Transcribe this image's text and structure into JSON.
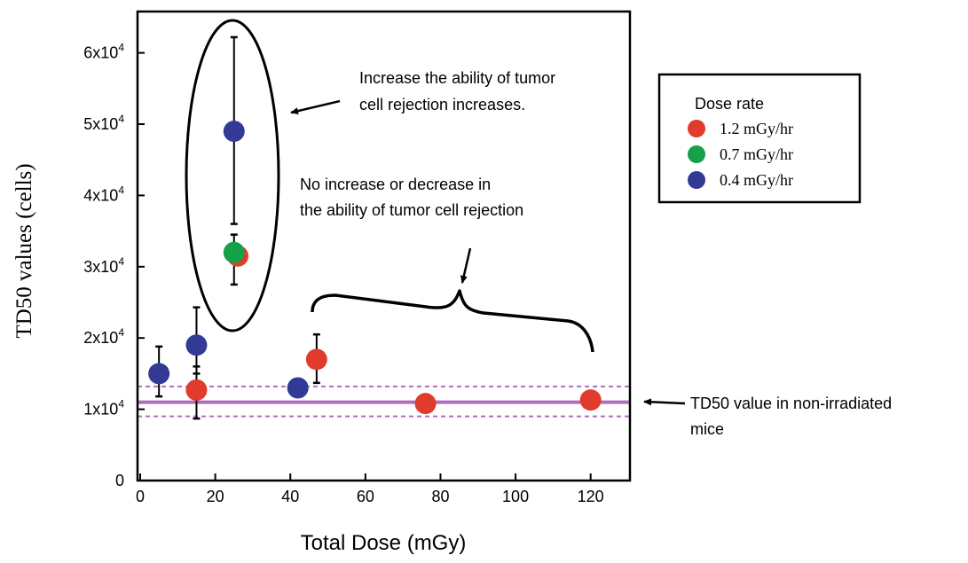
{
  "chart_data": {
    "type": "scatter",
    "xlabel": "Total Dose (mGy)",
    "ylabel": "TD50 values (cells)",
    "xlim": [
      0,
      130
    ],
    "ylim": [
      0,
      64000
    ],
    "x_ticks": [
      {
        "value": 0,
        "label": "0"
      },
      {
        "value": 20,
        "label": "20"
      },
      {
        "value": 40,
        "label": "40"
      },
      {
        "value": 60,
        "label": "60"
      },
      {
        "value": 80,
        "label": "80"
      },
      {
        "value": 100,
        "label": "100"
      },
      {
        "value": 120,
        "label": "120"
      }
    ],
    "y_ticks": [
      {
        "value": 0,
        "mantissa": "0",
        "base": "",
        "exp": ""
      },
      {
        "value": 10000,
        "mantissa": "1",
        "base": "x10",
        "exp": "4"
      },
      {
        "value": 20000,
        "mantissa": "2",
        "base": "x10",
        "exp": "4"
      },
      {
        "value": 30000,
        "mantissa": "3",
        "base": "x10",
        "exp": "4"
      },
      {
        "value": 40000,
        "mantissa": "4",
        "base": "x10",
        "exp": "4"
      },
      {
        "value": 50000,
        "mantissa": "5",
        "base": "x10",
        "exp": "4"
      },
      {
        "value": 60000,
        "mantissa": "6",
        "base": "x10",
        "exp": "4"
      }
    ],
    "legend": {
      "title": "Dose rate",
      "placement": "right",
      "entries": [
        {
          "label": "1.2 mGy/hr",
          "color": "#e03b2c"
        },
        {
          "label": "0.7 mGy/hr",
          "color": "#17a04a"
        },
        {
          "label": "0.4 mGy/hr",
          "color": "#323a96"
        }
      ]
    },
    "series": [
      {
        "name": "1.2 mGy/hr",
        "color": "#e03b2c",
        "points": [
          {
            "x": 15,
            "y": 12700,
            "err_low": 8700,
            "err_high": 16000
          },
          {
            "x": 26,
            "y": 31500
          },
          {
            "x": 47,
            "y": 17000,
            "err_low": 13700,
            "err_high": 20500
          },
          {
            "x": 76,
            "y": 10800
          },
          {
            "x": 120,
            "y": 11300
          }
        ]
      },
      {
        "name": "0.7 mGy/hr",
        "color": "#17a04a",
        "points": [
          {
            "x": 25,
            "y": 32000,
            "err_low": 27500,
            "err_high": 34500
          }
        ]
      },
      {
        "name": "0.4 mGy/hr",
        "color": "#323a96",
        "points": [
          {
            "x": 5,
            "y": 15000,
            "err_low": 11800,
            "err_high": 18800
          },
          {
            "x": 15,
            "y": 19000,
            "err_low": 15000,
            "err_high": 24300
          },
          {
            "x": 25,
            "y": 49000,
            "err_low": 36000,
            "err_high": 62200
          },
          {
            "x": 42,
            "y": 13000
          }
        ]
      }
    ],
    "reference": {
      "value": 11000,
      "band": [
        9000,
        13200
      ],
      "color": "#b46cc0",
      "label": "TD50 value in non-irradiated mice"
    },
    "annotations": {
      "increase": "Increase the ability of tumor cell rejection increases.",
      "no_change_line1": "No increase or decrease in",
      "no_change_line2": "the ability of tumor cell rejection",
      "ref_line1": "TD50 value in non-irradiated",
      "ref_line2": "mice"
    },
    "grid": false
  },
  "text": {
    "increase_line1": "Increase the ability of tumor",
    "increase_line2": "cell rejection increases."
  }
}
